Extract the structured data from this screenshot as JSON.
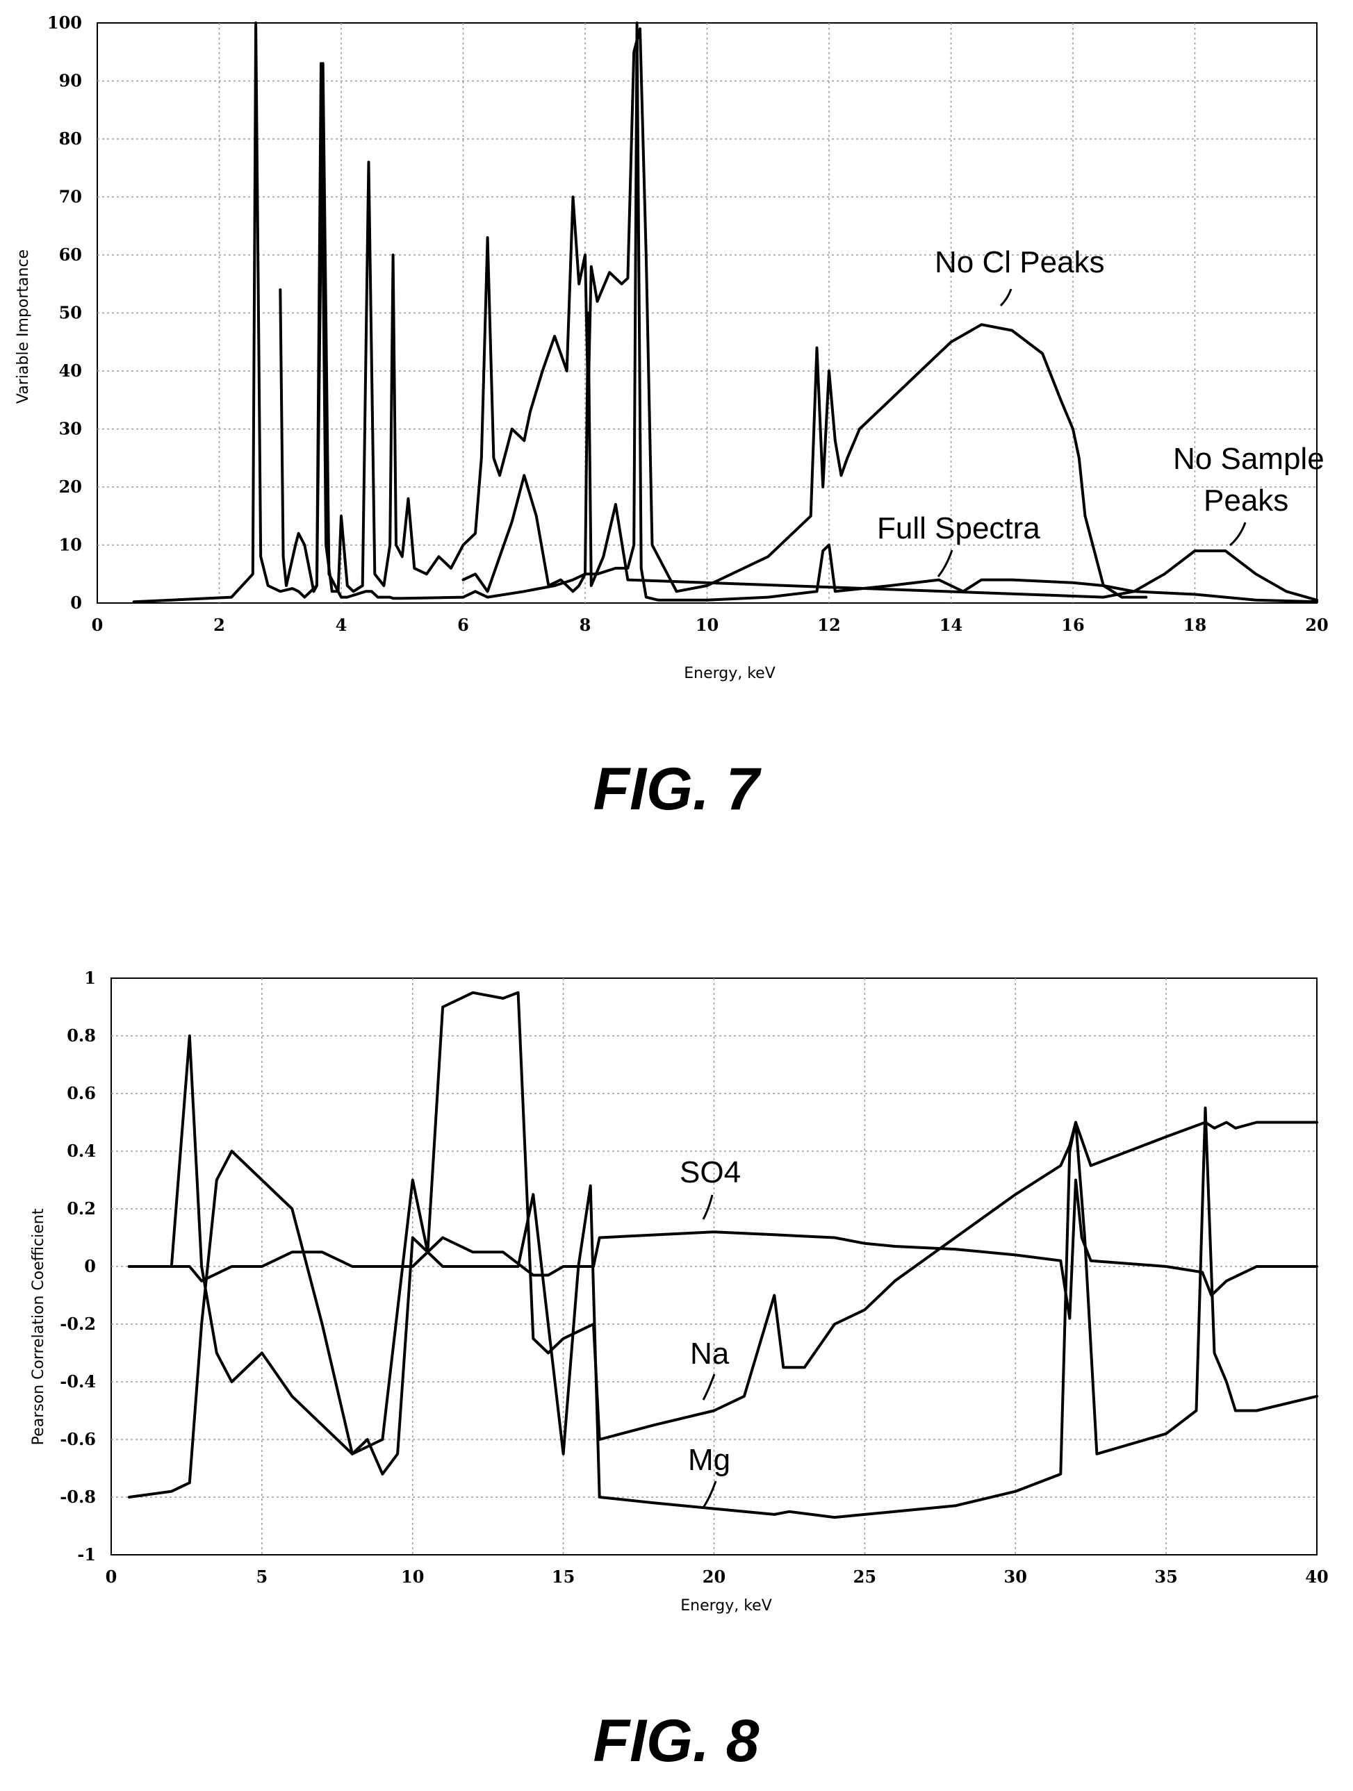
{
  "figures": [
    {
      "caption": "FIG. 7"
    },
    {
      "caption": "FIG. 8"
    }
  ],
  "chart_data": [
    {
      "type": "line",
      "xlabel": "Energy, keV",
      "ylabel": "Variable Importance",
      "xlim": [
        0,
        20
      ],
      "ylim": [
        0,
        100
      ],
      "xticks": [
        "0",
        "2",
        "4",
        "6",
        "8",
        "10",
        "12",
        "14",
        "16",
        "18",
        "20"
      ],
      "yticks": [
        "0",
        "10",
        "20",
        "30",
        "40",
        "50",
        "60",
        "70",
        "80",
        "90",
        "100"
      ],
      "grid": true,
      "annotations": [
        "No Cl Peaks",
        "No Sample",
        "Peaks",
        "Full Spectra"
      ],
      "series": [
        {
          "name": "Full Spectra",
          "x": [
            0.6,
            2.2,
            2.55,
            2.6,
            2.68,
            2.8,
            3.0,
            3.2,
            3.3,
            3.4,
            3.6,
            3.7,
            3.8,
            4.0,
            4.1,
            4.4,
            4.5,
            4.6,
            4.8,
            4.85,
            5.0,
            6.0,
            6.2,
            6.4,
            7.0,
            7.5,
            7.8,
            8.0,
            8.2,
            8.5,
            8.7,
            8.8,
            8.85,
            8.92,
            9.0,
            9.2,
            10,
            11,
            11.8,
            11.9,
            12.0,
            12.1,
            13,
            13.8,
            14.0,
            14.2,
            14.5,
            15,
            16,
            16.5,
            17,
            18,
            19,
            20
          ],
          "y": [
            0.2,
            1,
            5,
            100,
            8,
            3,
            2,
            2.5,
            2,
            1,
            3,
            93,
            5,
            1,
            1,
            2,
            2,
            1,
            1,
            0.8,
            0.8,
            1,
            2,
            1,
            2,
            3,
            4,
            5,
            5,
            6,
            6,
            10,
            100,
            6,
            1,
            0.5,
            0.5,
            1,
            2,
            9,
            10,
            2,
            3,
            4,
            3,
            2,
            4,
            4,
            3.5,
            3,
            2,
            1.5,
            0.5,
            0.2
          ]
        },
        {
          "name": "No Cl Peaks",
          "x": [
            3.0,
            3.05,
            3.1,
            3.25,
            3.3,
            3.4,
            3.55,
            3.6,
            3.67,
            3.75,
            3.85,
            3.95,
            4.0,
            4.1,
            4.2,
            4.35,
            4.45,
            4.55,
            4.7,
            4.8,
            4.85,
            4.9,
            5.0,
            5.1,
            5.2,
            5.4,
            5.6,
            5.8,
            6.0,
            6.2,
            6.3,
            6.4,
            6.5,
            6.6,
            6.8,
            7.0,
            7.1,
            7.3,
            7.5,
            7.7,
            7.8,
            7.9,
            8.0,
            8.05,
            8.1,
            8.2,
            8.4,
            8.6,
            8.7,
            8.8,
            8.9,
            9.0,
            9.1,
            9.5,
            10,
            11,
            11.7,
            11.8,
            11.9,
            12.0,
            12.1,
            12.2,
            12.3,
            12.5,
            13,
            13.5,
            13.8,
            14.0,
            14.5,
            15,
            15.5,
            15.8,
            16.0,
            16.1,
            16.2,
            16.5,
            16.8,
            17.0,
            17.2
          ],
          "y": [
            54,
            8,
            3,
            10,
            12,
            10,
            2,
            3,
            93,
            10,
            2,
            2,
            15,
            3,
            2,
            3,
            76,
            5,
            3,
            10,
            60,
            10,
            8,
            18,
            6,
            5,
            8,
            6,
            10,
            12,
            25,
            63,
            25,
            22,
            30,
            28,
            33,
            40,
            46,
            40,
            70,
            55,
            60,
            35,
            58,
            52,
            57,
            55,
            56,
            95,
            99,
            60,
            10,
            2,
            3,
            8,
            15,
            44,
            20,
            40,
            28,
            22,
            25,
            30,
            35,
            40,
            43,
            45,
            48,
            47,
            43,
            35,
            30,
            25,
            15,
            3,
            1,
            1,
            1
          ]
        },
        {
          "name": "No Sample Peaks",
          "x": [
            6.0,
            6.2,
            6.4,
            6.6,
            6.8,
            7.0,
            7.2,
            7.4,
            7.6,
            7.8,
            7.9,
            8.0,
            8.05,
            8.1,
            8.3,
            8.5,
            8.7,
            16.5,
            17,
            17.5,
            18,
            18.5,
            19,
            19.5,
            20
          ],
          "y": [
            4,
            5,
            2,
            8,
            14,
            22,
            15,
            3,
            4,
            2,
            3,
            5,
            50,
            3,
            8,
            17,
            4,
            1,
            2,
            5,
            9,
            9,
            5,
            2,
            0.5
          ]
        }
      ]
    },
    {
      "type": "line",
      "xlabel": "Energy, keV",
      "ylabel": "Pearson Correlation Coefficient",
      "xlim": [
        0,
        40
      ],
      "ylim": [
        -1,
        1
      ],
      "xticks": [
        "0",
        "5",
        "10",
        "15",
        "20",
        "25",
        "30",
        "35",
        "40"
      ],
      "yticks": [
        "1",
        "0.8",
        "0.6",
        "0.4",
        "0.2",
        "0",
        "-0.2",
        "-0.4",
        "-0.6",
        "-0.8",
        "-1"
      ],
      "grid": true,
      "annotations": [
        "SO4",
        "Na",
        "Mg"
      ],
      "series": [
        {
          "name": "SO4",
          "x": [
            0.6,
            2,
            2.6,
            3,
            4,
            5,
            6,
            7,
            8,
            9,
            10,
            11,
            12,
            13,
            14,
            14.5,
            15,
            16,
            16.2,
            20,
            22,
            24,
            25,
            26,
            28,
            30,
            31.5,
            31.8,
            32,
            32.2,
            32.5,
            35,
            36.2,
            36.5,
            37,
            38,
            40
          ],
          "y": [
            0,
            0,
            0,
            -0.05,
            0,
            0,
            0.05,
            0.05,
            0,
            0,
            0,
            0.1,
            0.05,
            0.05,
            -0.03,
            -0.03,
            0,
            0,
            0.1,
            0.12,
            0.11,
            0.1,
            0.08,
            0.07,
            0.06,
            0.04,
            0.02,
            -0.18,
            0.3,
            0.1,
            0.02,
            0.0,
            -0.02,
            -0.1,
            -0.05,
            0,
            0
          ]
        },
        {
          "name": "Na",
          "x": [
            0.6,
            2,
            2.6,
            3,
            3.5,
            4,
            5,
            6,
            7,
            8,
            9,
            10,
            10.5,
            11,
            12,
            13,
            13.5,
            14,
            14.5,
            15,
            16,
            16.2,
            18,
            20,
            21,
            22,
            22.3,
            23,
            24,
            25,
            26,
            28,
            30,
            31.5,
            31.8,
            32,
            32.5,
            35,
            36.3,
            36.6,
            37,
            37.3,
            38,
            40
          ],
          "y": [
            -0.8,
            -0.78,
            -0.75,
            -0.2,
            0.3,
            0.4,
            0.3,
            0.2,
            -0.2,
            -0.65,
            -0.6,
            0.3,
            0.05,
            0.9,
            0.95,
            0.93,
            0.95,
            -0.25,
            -0.3,
            -0.25,
            -0.2,
            -0.6,
            -0.55,
            -0.5,
            -0.45,
            -0.1,
            -0.35,
            -0.35,
            -0.2,
            -0.15,
            -0.05,
            0.1,
            0.25,
            0.35,
            0.42,
            0.5,
            0.35,
            0.45,
            0.5,
            0.48,
            0.5,
            0.48,
            0.5,
            0.5
          ]
        },
        {
          "name": "Mg",
          "x": [
            0.6,
            2,
            2.6,
            3,
            3.5,
            4,
            5,
            6,
            7,
            8,
            8.5,
            9,
            9.5,
            10,
            11,
            12,
            13,
            13.5,
            14,
            14.5,
            15,
            15.5,
            15.9,
            16.2,
            18,
            20,
            22,
            22.5,
            24,
            25,
            26,
            28,
            30,
            31.5,
            31.8,
            32,
            32.3,
            32.7,
            35,
            36,
            36.3,
            36.6,
            37,
            37.3,
            38,
            40
          ],
          "y": [
            0,
            0,
            0.8,
            0,
            -0.3,
            -0.4,
            -0.3,
            -0.45,
            -0.55,
            -0.65,
            -0.6,
            -0.72,
            -0.65,
            0.1,
            0,
            0,
            0,
            0,
            0.25,
            -0.2,
            -0.65,
            0.0,
            0.28,
            -0.8,
            -0.82,
            -0.84,
            -0.86,
            -0.85,
            -0.87,
            -0.86,
            -0.85,
            -0.83,
            -0.78,
            -0.72,
            0.4,
            0.5,
            0.1,
            -0.65,
            -0.58,
            -0.5,
            0.55,
            -0.3,
            -0.4,
            -0.5,
            -0.5,
            -0.45
          ]
        }
      ]
    }
  ]
}
